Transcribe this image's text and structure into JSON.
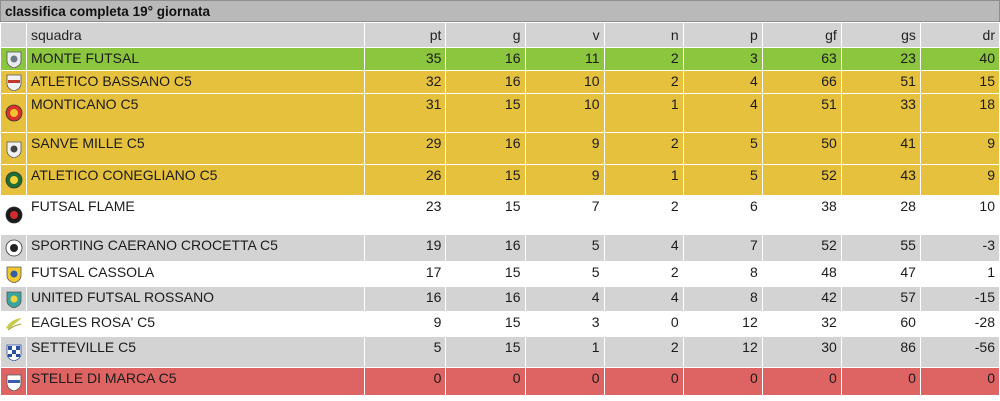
{
  "title": "classifica completa 19° giornata",
  "columns": [
    "squadra",
    "pt",
    "g",
    "v",
    "n",
    "p",
    "gf",
    "gs",
    "dr"
  ],
  "colors": {
    "leader": "#8cc63f",
    "playoff": "#e6c13e",
    "neutral": "#ffffff",
    "alt": "#d3d3d3",
    "relegated": "#de6464",
    "header": "#b9b9b9"
  },
  "rows": [
    {
      "team": "MONTE FUTSAL",
      "pt": "35",
      "g": "16",
      "v": "11",
      "n": "2",
      "p": "3",
      "gf": "63",
      "gs": "23",
      "dr": "40",
      "zone": "leader",
      "logo": "crest-grey"
    },
    {
      "team": "ATLETICO BASSANO C5",
      "pt": "32",
      "g": "16",
      "v": "10",
      "n": "2",
      "p": "4",
      "gf": "66",
      "gs": "51",
      "dr": "15",
      "zone": "playoff",
      "logo": "crest-red"
    },
    {
      "team": "MONTICANO C5",
      "pt": "31",
      "g": "15",
      "v": "10",
      "n": "1",
      "p": "4",
      "gf": "51",
      "gs": "33",
      "dr": "18",
      "zone": "playoff",
      "logo": "crest-round-red"
    },
    {
      "team": "SANVE MILLE C5",
      "pt": "29",
      "g": "16",
      "v": "9",
      "n": "2",
      "p": "5",
      "gf": "50",
      "gs": "41",
      "dr": "9",
      "zone": "playoff",
      "logo": "crest-dark"
    },
    {
      "team": "ATLETICO CONEGLIANO C5",
      "pt": "26",
      "g": "15",
      "v": "9",
      "n": "1",
      "p": "5",
      "gf": "52",
      "gs": "43",
      "dr": "9",
      "zone": "playoff",
      "logo": "crest-green"
    },
    {
      "team": "FUTSAL FLAME",
      "pt": "23",
      "g": "15",
      "v": "7",
      "n": "2",
      "p": "6",
      "gf": "38",
      "gs": "28",
      "dr": "10",
      "zone": "neutral",
      "logo": "crest-black-red"
    },
    {
      "team": "SPORTING CAERANO CROCETTA C5",
      "pt": "19",
      "g": "16",
      "v": "5",
      "n": "4",
      "p": "7",
      "gf": "52",
      "gs": "55",
      "dr": "-3",
      "zone": "alt",
      "logo": "crest-pirate"
    },
    {
      "team": "FUTSAL CASSOLA",
      "pt": "17",
      "g": "15",
      "v": "5",
      "n": "2",
      "p": "8",
      "gf": "48",
      "gs": "47",
      "dr": "1",
      "zone": "neutral",
      "logo": "crest-blue-yellow"
    },
    {
      "team": "UNITED FUTSAL ROSSANO",
      "pt": "16",
      "g": "16",
      "v": "4",
      "n": "4",
      "p": "8",
      "gf": "42",
      "gs": "57",
      "dr": "-15",
      "zone": "alt",
      "logo": "crest-teal"
    },
    {
      "team": "EAGLES ROSA' C5",
      "pt": "9",
      "g": "15",
      "v": "3",
      "n": "0",
      "p": "12",
      "gf": "32",
      "gs": "60",
      "dr": "-28",
      "zone": "neutral",
      "logo": "crest-eagle"
    },
    {
      "team": "SETTEVILLE C5",
      "pt": "5",
      "g": "15",
      "v": "1",
      "n": "2",
      "p": "12",
      "gf": "30",
      "gs": "86",
      "dr": "-56",
      "zone": "alt",
      "logo": "crest-checker-blue"
    },
    {
      "team": "STELLE DI MARCA C5",
      "pt": "0",
      "g": "0",
      "v": "0",
      "n": "0",
      "p": "0",
      "gf": "0",
      "gs": "0",
      "dr": "0",
      "zone": "relegated",
      "logo": "crest-stripes"
    }
  ]
}
